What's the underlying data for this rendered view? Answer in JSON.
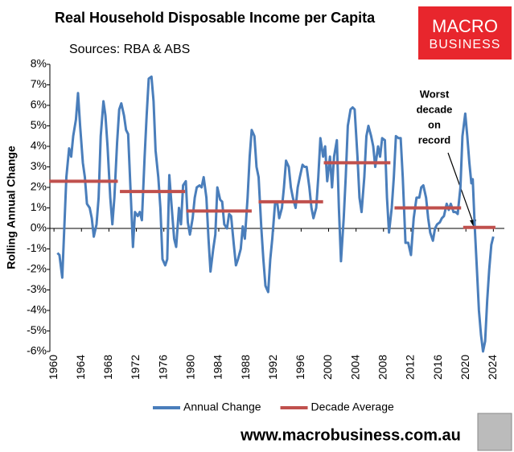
{
  "chart_data": {
    "type": "line",
    "title": "Real Household Disposable Income per Capita",
    "subtitle": "Sources: RBA & ABS",
    "ylabel": "Rolling Annual Change",
    "logo": [
      "MACRO",
      "BUSINESS"
    ],
    "website": "www.macrobusiness.com.au",
    "annotation": [
      "Worst",
      "decade",
      "on",
      "record"
    ],
    "xlim": [
      1959.4,
      2025.6
    ],
    "xticks": [
      1960,
      1964,
      1968,
      1972,
      1976,
      1980,
      1984,
      1988,
      1992,
      1996,
      2000,
      2004,
      2008,
      2012,
      2016,
      2020,
      2024
    ],
    "ylim": [
      -6,
      8
    ],
    "yticks": [
      {
        "value": -6,
        "label": "-6%"
      },
      {
        "value": -5,
        "label": "-5%"
      },
      {
        "value": -4,
        "label": "-4%"
      },
      {
        "value": -3,
        "label": "-3%"
      },
      {
        "value": -2,
        "label": "-2%"
      },
      {
        "value": -1,
        "label": "-1%"
      },
      {
        "value": 0,
        "label": "0%"
      },
      {
        "value": 1,
        "label": "1%"
      },
      {
        "value": 2,
        "label": "2%"
      },
      {
        "value": 3,
        "label": "3%"
      },
      {
        "value": 4,
        "label": "4%"
      },
      {
        "value": 5,
        "label": "5%"
      },
      {
        "value": 6,
        "label": "6%"
      },
      {
        "value": 7,
        "label": "7%"
      },
      {
        "value": 8,
        "label": "8%"
      }
    ],
    "series": [
      {
        "name": "Annual Change",
        "color": "#4a7ebb",
        "x": [
          1960.5,
          1960.8,
          1961.2,
          1961.5,
          1961.8,
          1962.2,
          1962.5,
          1962.8,
          1963.2,
          1963.5,
          1963.8,
          1964.2,
          1964.5,
          1964.8,
          1965.2,
          1965.5,
          1965.8,
          1966.2,
          1966.5,
          1966.8,
          1967.2,
          1967.5,
          1967.8,
          1968.2,
          1968.5,
          1968.8,
          1969.2,
          1969.5,
          1969.8,
          1970.2,
          1970.5,
          1970.8,
          1971.2,
          1971.5,
          1971.8,
          1972.2,
          1972.5,
          1972.8,
          1973.2,
          1973.5,
          1973.8,
          1974.2,
          1974.5,
          1974.8,
          1975.2,
          1975.5,
          1975.8,
          1976.2,
          1976.5,
          1976.8,
          1977.2,
          1977.5,
          1977.8,
          1978.2,
          1978.5,
          1978.8,
          1979.2,
          1979.5,
          1979.8,
          1980.2,
          1980.5,
          1980.8,
          1981.2,
          1981.5,
          1981.8,
          1982.2,
          1982.5,
          1982.8,
          1983.2,
          1983.5,
          1983.8,
          1984.2,
          1984.5,
          1984.8,
          1985.2,
          1985.5,
          1985.8,
          1986.2,
          1986.5,
          1986.8,
          1987.2,
          1987.5,
          1987.8,
          1988.2,
          1988.5,
          1988.8,
          1989.2,
          1989.5,
          1989.8,
          1990.2,
          1990.5,
          1990.8,
          1991.2,
          1991.5,
          1991.8,
          1992.2,
          1992.5,
          1992.8,
          1993.2,
          1993.5,
          1993.8,
          1994.2,
          1994.5,
          1994.8,
          1995.2,
          1995.5,
          1995.8,
          1996.2,
          1996.5,
          1996.8,
          1997.2,
          1997.5,
          1997.8,
          1998.2,
          1998.5,
          1998.8,
          1999.2,
          1999.5,
          1999.8,
          2000.2,
          2000.5,
          2000.8,
          2001.2,
          2001.5,
          2001.8,
          2002.2,
          2002.5,
          2002.8,
          2003.2,
          2003.5,
          2003.8,
          2004.2,
          2004.5,
          2004.8,
          2005.2,
          2005.5,
          2005.8,
          2006.2,
          2006.5,
          2006.8,
          2007.2,
          2007.5,
          2007.8,
          2008.2,
          2008.5,
          2008.8,
          2009.2,
          2009.5,
          2009.8,
          2010.2,
          2010.5,
          2010.8,
          2011.2,
          2011.6,
          2012.0,
          2012.4,
          2012.8,
          2013.2,
          2013.5,
          2013.8,
          2014.2,
          2014.5,
          2014.8,
          2015.2,
          2015.5,
          2015.8,
          2016.2,
          2016.5,
          2016.8,
          2017.2,
          2017.5,
          2017.8,
          2018.2,
          2018.5,
          2018.8,
          2019.2,
          2019.5,
          2019.9,
          2020.2,
          2020.5,
          2020.8,
          2021.0,
          2021.3,
          2021.6,
          2021.9,
          2022.2,
          2022.5,
          2022.8,
          2023.1,
          2023.4,
          2023.7,
          2024.0
        ],
        "values": [
          -1.2,
          -1.3,
          -2.4,
          0,
          2.5,
          3.9,
          3.5,
          4.5,
          5.3,
          6.6,
          5.0,
          3.2,
          2.5,
          1.2,
          1.0,
          0.5,
          -0.4,
          0.2,
          1.5,
          4.5,
          6.2,
          5.5,
          4.0,
          1.5,
          0.2,
          1.5,
          4.2,
          5.8,
          6.1,
          5.5,
          4.8,
          4.6,
          1.5,
          -0.9,
          0.8,
          0.6,
          0.8,
          0.4,
          3.5,
          5.5,
          7.3,
          7.4,
          6.2,
          3.8,
          2.5,
          1.0,
          -1.5,
          -1.8,
          -1.5,
          2.6,
          0.8,
          -0.5,
          -0.9,
          1.0,
          0.2,
          2.1,
          2.3,
          0.3,
          -0.3,
          0.5,
          1.5,
          2.0,
          2.1,
          2.0,
          2.5,
          1.5,
          -0.5,
          -2.1,
          -1.0,
          -0.3,
          2.0,
          1.4,
          1.3,
          0.2,
          0.0,
          0.7,
          0.6,
          -0.8,
          -1.8,
          -1.5,
          -1.0,
          0.1,
          -0.5,
          1.5,
          3.5,
          4.8,
          4.5,
          3.0,
          2.5,
          0,
          -1.5,
          -2.8,
          -3.1,
          -1.5,
          -0.5,
          1.2,
          1.3,
          0.5,
          1.0,
          2.0,
          3.3,
          3.0,
          2.0,
          1.5,
          1.0,
          2.0,
          2.5,
          3.1,
          3.0,
          3.0,
          2.0,
          1.0,
          0.5,
          1.0,
          2.5,
          4.4,
          3.5,
          4.0,
          2.3,
          3.5,
          2.0,
          3.5,
          4.3,
          1.0,
          -1.6,
          0.5,
          2.5,
          5.0,
          5.8,
          5.9,
          5.8,
          3.5,
          1.5,
          0.8,
          2.5,
          4.5,
          5.0,
          4.5,
          4.0,
          3.0,
          4.0,
          3.5,
          4.4,
          4.3,
          1.5,
          -0.2,
          1.0,
          2.5,
          4.5,
          4.4,
          4.4,
          2.5,
          -0.7,
          -0.7,
          -1.3,
          0.5,
          1.5,
          1.5,
          2.0,
          2.1,
          1.5,
          0.5,
          -0.2,
          -0.6,
          0,
          0.2,
          0.3,
          0.5,
          0.6,
          1.2,
          0.9,
          1.2,
          0.8,
          0.8,
          0.7,
          2.0,
          4.5,
          5.6,
          4.5,
          3.2,
          2.2,
          2.4,
          0,
          -2,
          -4,
          -5.2,
          -6,
          -5.5,
          -3.5,
          -2,
          -0.8,
          -0.4
        ]
      },
      {
        "name": "Decade Average",
        "color": "#c0504d",
        "style": "segments",
        "x_start": [
          1959.3,
          1969.6,
          1979.3,
          1989.8,
          1999.3,
          2009.6,
          2019.6
        ],
        "x_end": [
          1969.3,
          1979.1,
          1988.8,
          1999.2,
          2009.0,
          2019.3,
          2024.3
        ],
        "values": [
          2.3,
          1.8,
          0.85,
          1.3,
          3.2,
          1.0,
          0.05
        ]
      }
    ],
    "legend": "bottom"
  }
}
